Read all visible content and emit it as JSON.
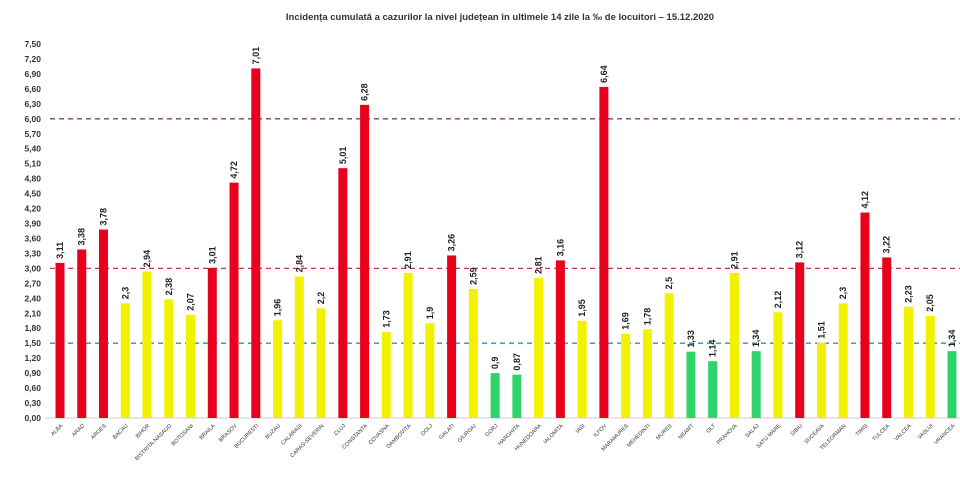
{
  "chart_data": {
    "type": "bar",
    "title": "Incidența cumulată a cazurilor la nivel județean în ultimele 14 zile   la ‰ de locuitori – 15.12.2020",
    "xlabel": "",
    "ylabel": "",
    "ylim": [
      0,
      7.5
    ],
    "yticks": [
      "0,00",
      "0,30",
      "0,60",
      "0,90",
      "1,20",
      "1,50",
      "1,80",
      "2,10",
      "2,40",
      "2,70",
      "3,00",
      "3,30",
      "3,60",
      "3,90",
      "4,20",
      "4,50",
      "4,80",
      "5,10",
      "5,40",
      "5,70",
      "6,00",
      "6,30",
      "6,60",
      "6,90",
      "7,20",
      "7,50"
    ],
    "grid": false,
    "legend": "none",
    "categories": [
      "ALBA",
      "ARAD",
      "ARGES",
      "BACAU",
      "BIHOR",
      "BISTRITA-NASAUD",
      "BOTOSANI",
      "BRAILA",
      "BRASOV",
      "BUCURESTI",
      "BUZAU",
      "CALARASI",
      "CARAS-SEVERIN",
      "CLUJ",
      "CONSTANTA",
      "COVASNA",
      "DAMBOVITA",
      "DOLJ",
      "GALATI",
      "GIURGIU",
      "GORJ",
      "HARGHITA",
      "HUNEDOARA",
      "IALOMITA",
      "IASI",
      "ILFOV",
      "MARAMURES",
      "MEHEDINTI",
      "MURES",
      "NEAMT",
      "OLT",
      "PRAHOVA",
      "SALAJ",
      "SATU MARE",
      "SIBIU",
      "SUCEAVA",
      "TELEORMAN",
      "TIMIS",
      "TULCEA",
      "VALCEA",
      "VASLUI",
      "VRANCEA"
    ],
    "values": [
      3.11,
      3.38,
      3.78,
      2.3,
      2.94,
      2.38,
      2.07,
      3.01,
      4.72,
      7.01,
      1.96,
      2.84,
      2.2,
      5.01,
      6.28,
      1.73,
      2.91,
      1.9,
      3.26,
      2.59,
      0.9,
      0.87,
      2.81,
      3.16,
      1.95,
      6.64,
      1.69,
      1.78,
      2.5,
      1.33,
      1.14,
      2.91,
      1.34,
      2.12,
      3.12,
      1.51,
      2.3,
      4.12,
      3.22,
      2.23,
      2.05,
      1.34
    ],
    "value_labels": [
      "3,11",
      "3,38",
      "3,78",
      "2,3",
      "2,94",
      "2,38",
      "2,07",
      "3,01",
      "4,72",
      "7,01",
      "1,96",
      "2,84",
      "2,2",
      "5,01",
      "6,28",
      "1,73",
      "2,91",
      "1,9",
      "3,26",
      "2,59",
      "0,9",
      "0,87",
      "2,81",
      "3,16",
      "1,95",
      "6,64",
      "1,69",
      "1,78",
      "2,5",
      "1,33",
      "1,14",
      "2,91",
      "1,34",
      "2,12",
      "3,12",
      "1,51",
      "2,3",
      "4,12",
      "3,22",
      "2,23",
      "2,05",
      "1,34"
    ],
    "reference_lines": [
      {
        "value": 6.0,
        "color": "#8b3a7a"
      },
      {
        "value": 3.0,
        "color": "#c0394a"
      },
      {
        "value": 1.5,
        "color": "#2a8fb5"
      }
    ],
    "colors": {
      "above_3": "#e8001c",
      "between_1_5_and_3": "#f2f200",
      "below_1_5": "#2ed36a"
    }
  }
}
